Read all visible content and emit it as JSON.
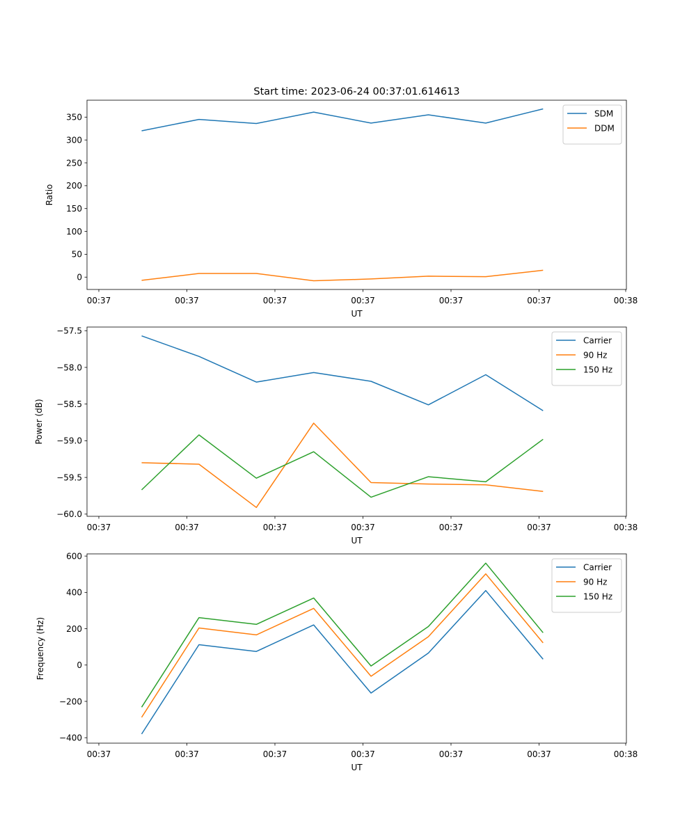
{
  "chart_data": [
    {
      "type": "line",
      "title": "Start time: 2023-06-24 00:37:01.614613",
      "xlabel": "UT",
      "ylabel": "Ratio",
      "x_tick_labels": [
        "00:37",
        "00:37",
        "00:37",
        "00:37",
        "00:37",
        "00:37",
        "00:38"
      ],
      "y_ticks": [
        0,
        50,
        100,
        150,
        200,
        250,
        300,
        350
      ],
      "y_tick_labels": [
        "0",
        "50",
        "100",
        "150",
        "200",
        "250",
        "300",
        "350"
      ],
      "ylim": [
        -27,
        387
      ],
      "grid": false,
      "legend_position": "upper right",
      "series": [
        {
          "name": "SDM",
          "color": "#1f77b4",
          "values": [
            320,
            345,
            336,
            361,
            337,
            355,
            337,
            368
          ]
        },
        {
          "name": "DDM",
          "color": "#ff7f0e",
          "values": [
            -7,
            8,
            8,
            -8,
            -4,
            2,
            1,
            15
          ]
        }
      ]
    },
    {
      "type": "line",
      "title": "",
      "xlabel": "UT",
      "ylabel": "Power (dB)",
      "x_tick_labels": [
        "00:37",
        "00:37",
        "00:37",
        "00:37",
        "00:37",
        "00:37",
        "00:38"
      ],
      "y_ticks": [
        -60.0,
        -59.5,
        -59.0,
        -58.5,
        -58.0,
        -57.5
      ],
      "y_tick_labels": [
        "−60.0",
        "−59.5",
        "−59.0",
        "−58.5",
        "−58.0",
        "−57.5"
      ],
      "ylim": [
        -60.03,
        -57.45
      ],
      "grid": false,
      "legend_position": "upper right",
      "series": [
        {
          "name": "Carrier",
          "color": "#1f77b4",
          "values": [
            -57.57,
            -57.85,
            -58.2,
            -58.07,
            -58.19,
            -58.51,
            -58.1,
            -58.59
          ]
        },
        {
          "name": "90 Hz",
          "color": "#ff7f0e",
          "values": [
            -59.3,
            -59.32,
            -59.91,
            -58.76,
            -59.57,
            -59.59,
            -59.6,
            -59.69
          ]
        },
        {
          "name": "150 Hz",
          "color": "#2ca02c",
          "values": [
            -59.67,
            -58.92,
            -59.51,
            -59.15,
            -59.77,
            -59.49,
            -59.56,
            -58.98
          ]
        }
      ]
    },
    {
      "type": "line",
      "title": "",
      "xlabel": "UT",
      "ylabel": "Frequency (Hz)",
      "x_tick_labels": [
        "00:37",
        "00:37",
        "00:37",
        "00:37",
        "00:37",
        "00:37",
        "00:38"
      ],
      "y_ticks": [
        -400,
        -200,
        0,
        200,
        400,
        600
      ],
      "y_tick_labels": [
        "−400",
        "−200",
        "0",
        "200",
        "400",
        "600"
      ],
      "ylim": [
        -430,
        612
      ],
      "grid": false,
      "legend_position": "upper right",
      "series": [
        {
          "name": "Carrier",
          "color": "#1f77b4",
          "values": [
            -380,
            112,
            75,
            221,
            -154,
            66,
            410,
            32
          ]
        },
        {
          "name": "90 Hz",
          "color": "#ff7f0e",
          "values": [
            -288,
            204,
            166,
            312,
            -62,
            156,
            502,
            122
          ]
        },
        {
          "name": "150 Hz",
          "color": "#2ca02c",
          "values": [
            -232,
            261,
            224,
            369,
            -5,
            212,
            561,
            178
          ]
        }
      ]
    }
  ]
}
